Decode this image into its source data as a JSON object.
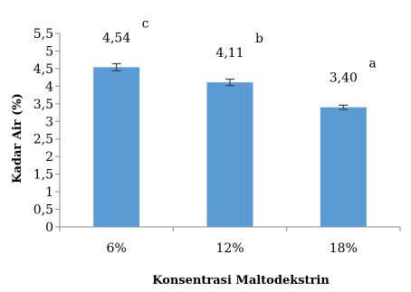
{
  "chart_data": {
    "type": "bar",
    "categories": [
      "6%",
      "12%",
      "18%"
    ],
    "values": [
      4.54,
      4.11,
      3.4
    ],
    "data_labels": [
      "4,54",
      "4,11",
      "3,40"
    ],
    "significance_letters": [
      "c",
      "b",
      "a"
    ],
    "error": [
      0.1,
      0.09,
      0.06
    ],
    "xlabel": "Konsentrasi Maltodekstrin",
    "ylabel": "Kadar Air (%)",
    "ylim": [
      0,
      5.5
    ],
    "yticks": [
      0,
      0.5,
      1,
      1.5,
      2,
      2.5,
      3,
      3.5,
      4,
      4.5,
      5,
      5.5
    ],
    "ytick_labels": [
      "0",
      "0,5",
      "1",
      "1,5",
      "2",
      "2,5",
      "3",
      "3,5",
      "4",
      "4,5",
      "5",
      "5,5"
    ],
    "bar_color": "#5b9bd5",
    "grid": false,
    "legend": false
  }
}
